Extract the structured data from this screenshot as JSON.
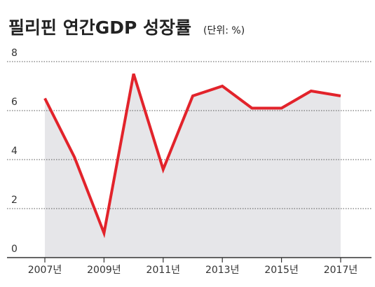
{
  "chart_data": {
    "type": "line",
    "title": "필리핀 연간GDP 성장률",
    "subtitle": "(단위: %)",
    "categories": [
      "2007년",
      null,
      "2009년",
      null,
      "2011년",
      null,
      "2013년",
      null,
      "2015년",
      null,
      "2017년"
    ],
    "series": [
      {
        "color": "#e2232b",
        "values": [
          6.5,
          4.1,
          1.0,
          7.5,
          3.6,
          6.6,
          7.0,
          6.1,
          6.1,
          6.8,
          6.6
        ]
      }
    ],
    "area_color": "#e6e6e9",
    "ylim": [
      0,
      8
    ],
    "yticks": [
      0,
      2,
      4,
      6,
      8
    ],
    "grid": true
  }
}
